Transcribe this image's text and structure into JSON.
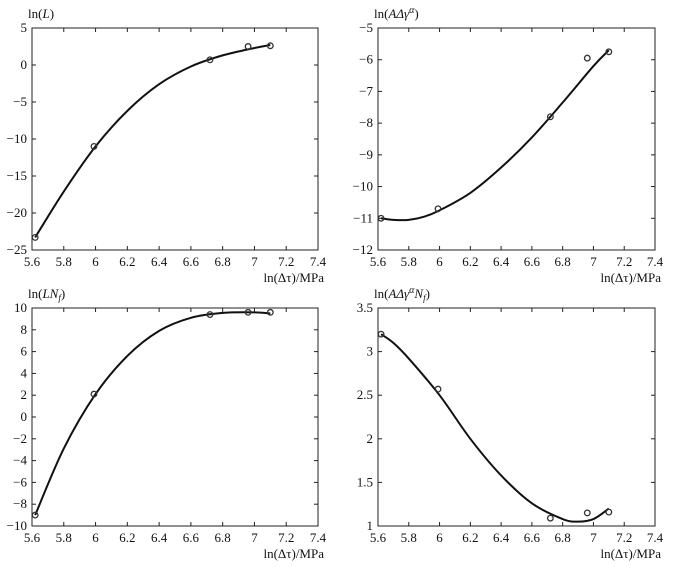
{
  "charts": [
    {
      "ylabel_main": "ln(",
      "ylabel_italic": "L",
      "ylabel_sup": "",
      "ylabel_sub": "",
      "ylabel_close": ")",
      "xlabel": "ln(Δτ)/MPa",
      "xticks": [
        "5.6",
        "5.8",
        "6",
        "6.2",
        "6.4",
        "6.6",
        "6.8",
        "7",
        "7.2",
        "7.4"
      ],
      "yticks": [
        "5",
        "0",
        "−5",
        "−10",
        "−15",
        "−20",
        "−25"
      ]
    },
    {
      "ylabel_main": "ln(",
      "ylabel_italic": "AΔγ",
      "ylabel_sup": "α",
      "ylabel_sub": "",
      "ylabel_close": ")",
      "xlabel": "ln(Δτ)/MPa",
      "xticks": [
        "5.6",
        "5.8",
        "6",
        "6.2",
        "6.4",
        "6.6",
        "6.8",
        "7",
        "7.2",
        "7.4"
      ],
      "yticks": [
        "−5",
        "−6",
        "−7",
        "−8",
        "−9",
        "−10",
        "−11",
        "−12"
      ]
    },
    {
      "ylabel_main": "ln(",
      "ylabel_italic": "LN",
      "ylabel_sup": "",
      "ylabel_sub": "f",
      "ylabel_close": ")",
      "xlabel": "ln(Δτ)/MPa",
      "xticks": [
        "5.6",
        "5.8",
        "6",
        "6.2",
        "6.4",
        "6.6",
        "6.8",
        "7",
        "7.2",
        "7.4"
      ],
      "yticks": [
        "10",
        "8",
        "6",
        "4",
        "2",
        "0",
        "−2",
        "−4",
        "−6",
        "−8",
        "−10"
      ]
    },
    {
      "ylabel_main": "ln(",
      "ylabel_italic": "AΔγ",
      "ylabel_sup": "α",
      "ylabel_sub": "N",
      "ylabel_subsub": "f",
      "ylabel_close": ")",
      "xlabel": "ln(Δτ)/MPa",
      "xticks": [
        "5.6",
        "5.8",
        "6",
        "6.2",
        "6.4",
        "6.6",
        "6.8",
        "7",
        "7.2",
        "7.4"
      ],
      "yticks": [
        "3.5",
        "3",
        "2.5",
        "2",
        "1.5",
        "1"
      ]
    }
  ],
  "chart_data": [
    {
      "type": "scatter",
      "xlim": [
        5.6,
        7.4
      ],
      "ylim": [
        -25,
        5
      ],
      "points": [
        [
          5.62,
          -23.3
        ],
        [
          5.99,
          -11.0
        ],
        [
          6.72,
          0.7
        ],
        [
          6.96,
          2.5
        ],
        [
          7.1,
          2.6
        ]
      ],
      "fit_curve": [
        [
          5.62,
          -23.3
        ],
        [
          5.8,
          -17.1
        ],
        [
          6.0,
          -11.0
        ],
        [
          6.2,
          -6.2
        ],
        [
          6.4,
          -2.6
        ],
        [
          6.6,
          -0.2
        ],
        [
          6.8,
          1.3
        ],
        [
          7.0,
          2.3
        ],
        [
          7.1,
          2.7
        ]
      ],
      "grid": false
    },
    {
      "type": "scatter",
      "xlim": [
        5.6,
        7.4
      ],
      "ylim": [
        -12,
        -5
      ],
      "points": [
        [
          5.62,
          -11.0
        ],
        [
          5.99,
          -10.7
        ],
        [
          6.72,
          -7.8
        ],
        [
          6.96,
          -5.95
        ],
        [
          7.1,
          -5.75
        ]
      ],
      "fit_curve": [
        [
          5.62,
          -11.0
        ],
        [
          5.7,
          -11.05
        ],
        [
          5.8,
          -11.05
        ],
        [
          5.9,
          -10.95
        ],
        [
          6.0,
          -10.75
        ],
        [
          6.2,
          -10.2
        ],
        [
          6.4,
          -9.4
        ],
        [
          6.6,
          -8.45
        ],
        [
          6.8,
          -7.35
        ],
        [
          7.0,
          -6.2
        ],
        [
          7.1,
          -5.7
        ]
      ],
      "grid": false
    },
    {
      "type": "scatter",
      "xlim": [
        5.6,
        7.4
      ],
      "ylim": [
        -10,
        10
      ],
      "points": [
        [
          5.62,
          -9.0
        ],
        [
          5.99,
          2.1
        ],
        [
          6.72,
          9.4
        ],
        [
          6.96,
          9.6
        ],
        [
          7.1,
          9.6
        ]
      ],
      "fit_curve": [
        [
          5.62,
          -9.0
        ],
        [
          5.8,
          -2.9
        ],
        [
          6.0,
          2.1
        ],
        [
          6.2,
          5.6
        ],
        [
          6.4,
          7.9
        ],
        [
          6.6,
          9.1
        ],
        [
          6.8,
          9.55
        ],
        [
          7.0,
          9.6
        ],
        [
          7.1,
          9.5
        ]
      ],
      "grid": false
    },
    {
      "type": "scatter",
      "xlim": [
        5.6,
        7.4
      ],
      "ylim": [
        1,
        3.5
      ],
      "points": [
        [
          5.62,
          3.2
        ],
        [
          5.99,
          2.57
        ],
        [
          6.72,
          1.09
        ],
        [
          6.96,
          1.15
        ],
        [
          7.1,
          1.16
        ]
      ],
      "fit_curve": [
        [
          5.62,
          3.2
        ],
        [
          5.7,
          3.1
        ],
        [
          5.8,
          2.92
        ],
        [
          6.0,
          2.5
        ],
        [
          6.2,
          2.0
        ],
        [
          6.4,
          1.58
        ],
        [
          6.6,
          1.26
        ],
        [
          6.8,
          1.08
        ],
        [
          6.9,
          1.05
        ],
        [
          7.0,
          1.08
        ],
        [
          7.1,
          1.2
        ]
      ],
      "grid": false
    }
  ]
}
